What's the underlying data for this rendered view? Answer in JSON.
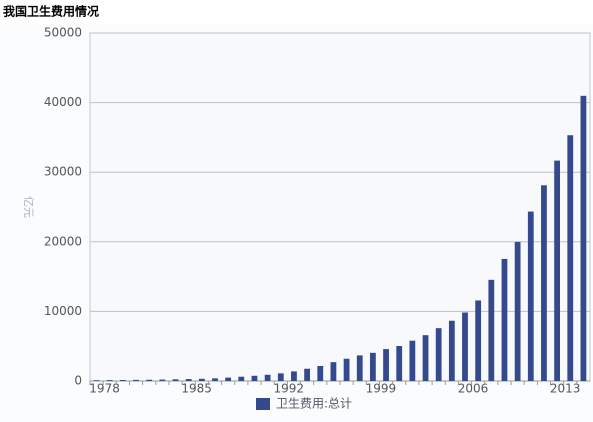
{
  "chart_data": {
    "type": "bar",
    "title": "我国卫生费用情况",
    "y_label": "亿元",
    "categories": [
      "1978",
      null,
      null,
      null,
      null,
      null,
      null,
      "1985",
      null,
      null,
      null,
      null,
      null,
      null,
      "1992",
      null,
      null,
      null,
      null,
      null,
      null,
      "1999",
      null,
      null,
      null,
      null,
      null,
      null,
      "2006",
      null,
      null,
      null,
      null,
      null,
      null,
      "2013",
      null,
      null
    ],
    "series": [
      {
        "name": "卫生费用:总计",
        "color": "#354a8c",
        "values": [
          110.2,
          126.2,
          143.2,
          160.1,
          177.5,
          207.4,
          242.1,
          279.0,
          315.9,
          379.6,
          488.0,
          615.5,
          747.4,
          893.5,
          1096.9,
          1377.8,
          1761.2,
          2155.1,
          2709.4,
          3196.7,
          3678.7,
          4047.5,
          4586.6,
          5025.9,
          5790.0,
          6584.1,
          7590.3,
          8659.9,
          9843.3,
          11574.0,
          14535.4,
          17541.9,
          19980.4,
          24345.9,
          28119.0,
          31669.0,
          35312.4,
          40974.6
        ]
      }
    ],
    "ylim": [
      0,
      50000
    ],
    "yticks": [
      0,
      10000,
      20000,
      30000,
      40000,
      50000
    ],
    "grid": true
  }
}
